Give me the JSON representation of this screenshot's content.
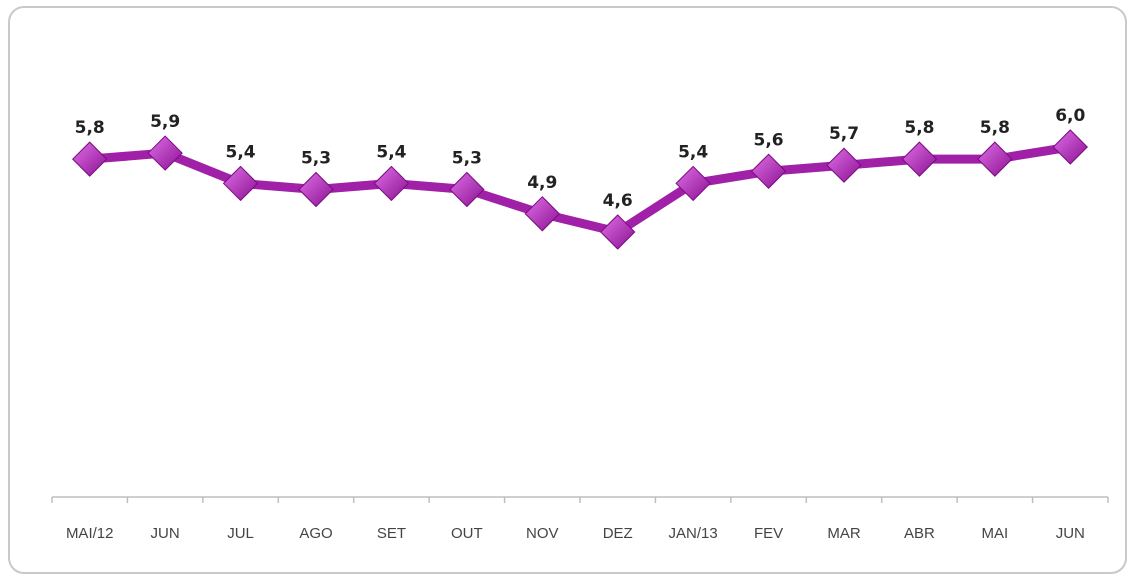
{
  "chart_data": {
    "type": "line",
    "categories": [
      "MAI/12",
      "JUN",
      "JUL",
      "AGO",
      "SET",
      "OUT",
      "NOV",
      "DEZ",
      "JAN/13",
      "FEV",
      "MAR",
      "ABR",
      "MAI",
      "JUN"
    ],
    "series": [
      {
        "values": [
          5.8,
          5.9,
          5.4,
          5.3,
          5.4,
          5.3,
          4.9,
          4.6,
          5.4,
          5.6,
          5.7,
          5.8,
          5.8,
          6.0
        ],
        "labels": [
          "5,8",
          "5,9",
          "5,4",
          "5,3",
          "5,4",
          "5,3",
          "4,9",
          "4,6",
          "5,4",
          "5,6",
          "5,7",
          "5,8",
          "5,8",
          "6,0"
        ],
        "color": "#a020a8",
        "marker": "diamond"
      }
    ],
    "title": "",
    "xlabel": "",
    "ylabel": "",
    "y_axis_visible": false,
    "grid": false,
    "legend": false
  }
}
